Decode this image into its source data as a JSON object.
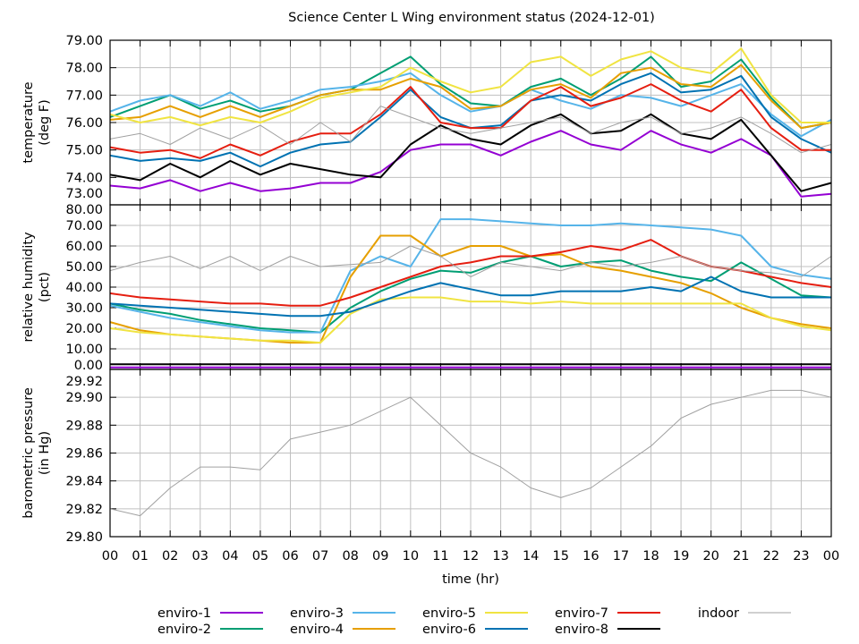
{
  "chart_data": {
    "type": "line",
    "title": "Science Center L Wing environment status (2024-12-01)",
    "xlabel": "time (hr)",
    "x_hours": [
      0,
      1,
      2,
      3,
      4,
      5,
      6,
      7,
      8,
      9,
      10,
      11,
      12,
      13,
      14,
      15,
      16,
      17,
      18,
      19,
      20,
      21,
      22,
      23,
      24
    ],
    "x_tick_labels": [
      "00",
      "01",
      "02",
      "03",
      "04",
      "05",
      "06",
      "07",
      "08",
      "09",
      "10",
      "11",
      "12",
      "13",
      "14",
      "15",
      "16",
      "17",
      "18",
      "19",
      "20",
      "21",
      "22",
      "23",
      "00"
    ],
    "grid": true,
    "legend_placement": "bottom",
    "series_styles": [
      {
        "name": "enviro-1",
        "color": "#9400d3"
      },
      {
        "name": "enviro-2",
        "color": "#009e73"
      },
      {
        "name": "enviro-3",
        "color": "#56b4e9"
      },
      {
        "name": "enviro-4",
        "color": "#e69f00"
      },
      {
        "name": "enviro-5",
        "color": "#f0e442"
      },
      {
        "name": "enviro-6",
        "color": "#0072b2"
      },
      {
        "name": "enviro-7",
        "color": "#e51e10"
      },
      {
        "name": "enviro-8",
        "color": "#000000"
      },
      {
        "name": "indoor",
        "color": "#a0a0a0"
      }
    ],
    "panels": [
      {
        "ylabel": [
          "temperature",
          "(deg F)"
        ],
        "ylim": [
          73,
          79
        ],
        "yticks": [
          "73.00",
          "74.00",
          "75.00",
          "76.00",
          "77.00",
          "78.00",
          "79.00"
        ],
        "series": [
          {
            "name": "enviro-1",
            "values": [
              73.7,
              73.6,
              73.9,
              73.5,
              73.8,
              73.5,
              73.6,
              73.8,
              73.8,
              74.2,
              75.0,
              75.2,
              75.2,
              74.8,
              75.3,
              75.7,
              75.2,
              75.0,
              75.7,
              75.2,
              74.9,
              75.4,
              74.8,
              73.3,
              73.4
            ]
          },
          {
            "name": "enviro-2",
            "values": [
              76.2,
              76.6,
              77.0,
              76.5,
              76.8,
              76.4,
              76.6,
              77.0,
              77.2,
              77.8,
              78.4,
              77.4,
              76.7,
              76.6,
              77.3,
              77.6,
              77.0,
              77.6,
              78.4,
              77.3,
              77.5,
              78.3,
              76.9,
              75.8,
              76.0
            ]
          },
          {
            "name": "enviro-3",
            "values": [
              76.4,
              76.8,
              77.0,
              76.6,
              77.1,
              76.5,
              76.8,
              77.2,
              77.3,
              77.5,
              77.8,
              77.0,
              76.4,
              76.6,
              77.2,
              76.8,
              76.5,
              77.0,
              76.9,
              76.6,
              77.0,
              77.4,
              76.3,
              75.5,
              76.1
            ]
          },
          {
            "name": "enviro-4",
            "values": [
              76.1,
              76.2,
              76.6,
              76.2,
              76.6,
              76.2,
              76.6,
              77.0,
              77.2,
              77.2,
              77.6,
              77.3,
              76.5,
              76.6,
              77.2,
              77.4,
              76.9,
              77.8,
              78.0,
              77.4,
              77.3,
              78.1,
              76.8,
              75.8,
              76.0
            ]
          },
          {
            "name": "enviro-5",
            "values": [
              76.3,
              76.0,
              76.2,
              75.9,
              76.2,
              76.0,
              76.4,
              76.9,
              77.1,
              77.3,
              78.0,
              77.5,
              77.1,
              77.3,
              78.2,
              78.4,
              77.7,
              78.3,
              78.6,
              78.0,
              77.8,
              78.7,
              77.0,
              76.0,
              76.0
            ]
          },
          {
            "name": "enviro-6",
            "values": [
              74.8,
              74.6,
              74.7,
              74.6,
              74.9,
              74.4,
              74.9,
              75.2,
              75.3,
              76.2,
              77.2,
              76.2,
              75.8,
              75.9,
              76.8,
              77.0,
              76.8,
              77.4,
              77.8,
              77.1,
              77.2,
              77.7,
              76.2,
              75.4,
              74.9
            ]
          },
          {
            "name": "enviro-7",
            "values": [
              75.1,
              74.9,
              75.0,
              74.7,
              75.2,
              74.8,
              75.3,
              75.6,
              75.6,
              76.3,
              77.3,
              76.0,
              75.8,
              75.8,
              76.8,
              77.3,
              76.6,
              76.9,
              77.4,
              76.8,
              76.4,
              77.2,
              75.8,
              75.0,
              75.0
            ]
          },
          {
            "name": "enviro-8",
            "values": [
              74.1,
              73.9,
              74.5,
              74.0,
              74.6,
              74.1,
              74.5,
              74.3,
              74.1,
              74.0,
              75.2,
              75.9,
              75.4,
              75.2,
              75.9,
              76.3,
              75.6,
              75.7,
              76.3,
              75.6,
              75.4,
              76.1,
              74.8,
              73.5,
              73.8
            ]
          },
          {
            "name": "indoor",
            "values": [
              75.4,
              75.6,
              75.2,
              75.8,
              75.4,
              75.9,
              75.2,
              76.0,
              75.3,
              76.6,
              76.2,
              75.8,
              75.6,
              75.8,
              76.0,
              76.2,
              75.6,
              76.0,
              76.2,
              75.6,
              75.8,
              76.2,
              75.6,
              74.9,
              75.2
            ]
          }
        ]
      },
      {
        "ylabel": [
          "relative humidity",
          "(pct)"
        ],
        "ylim": [
          0,
          80
        ],
        "yticks": [
          "0.00",
          "10.00",
          "20.00",
          "30.00",
          "40.00",
          "50.00",
          "60.00",
          "70.00",
          "80.00"
        ],
        "series": [
          {
            "name": "enviro-1",
            "values": [
              1,
              1,
              1,
              1,
              1,
              1,
              1,
              1,
              1,
              1,
              1,
              1,
              1,
              1,
              1,
              1,
              1,
              1,
              1,
              1,
              1,
              1,
              1,
              1,
              1
            ]
          },
          {
            "name": "enviro-2",
            "values": [
              32,
              29,
              27,
              24,
              22,
              20,
              19,
              18,
              30,
              38,
              44,
              48,
              47,
              52,
              55,
              50,
              52,
              53,
              48,
              45,
              43,
              52,
              44,
              36,
              35
            ]
          },
          {
            "name": "enviro-3",
            "values": [
              31,
              28,
              25,
              23,
              21,
              19,
              18,
              18,
              48,
              55,
              50,
              73,
              73,
              72,
              71,
              70,
              70,
              71,
              70,
              69,
              68,
              65,
              50,
              46,
              44
            ]
          },
          {
            "name": "enviro-4",
            "values": [
              23,
              19,
              17,
              16,
              15,
              14,
              13,
              13,
              45,
              65,
              65,
              55,
              60,
              60,
              55,
              56,
              50,
              48,
              45,
              42,
              37,
              30,
              25,
              22,
              20
            ]
          },
          {
            "name": "enviro-5",
            "values": [
              20,
              18,
              17,
              16,
              15,
              14,
              14,
              13,
              27,
              34,
              35,
              35,
              33,
              33,
              32,
              33,
              32,
              32,
              32,
              32,
              32,
              32,
              25,
              21,
              19
            ]
          },
          {
            "name": "enviro-6",
            "values": [
              32,
              31,
              30,
              29,
              28,
              27,
              26,
              26,
              28,
              33,
              38,
              42,
              39,
              36,
              36,
              38,
              38,
              38,
              40,
              38,
              45,
              38,
              35,
              35,
              35
            ]
          },
          {
            "name": "enviro-7",
            "values": [
              37,
              35,
              34,
              33,
              32,
              32,
              31,
              31,
              35,
              40,
              45,
              50,
              52,
              55,
              55,
              57,
              60,
              58,
              63,
              55,
              50,
              48,
              45,
              42,
              40
            ]
          },
          {
            "name": "enviro-8",
            "values": [
              2.5,
              2.5,
              2.5,
              2.5,
              2.5,
              2.5,
              2.5,
              2.5,
              2.5,
              2.5,
              2.5,
              2.5,
              2.5,
              2.5,
              2.5,
              2.5,
              2.5,
              2.5,
              2.5,
              2.5,
              2.5,
              2.5,
              2.5,
              2.5,
              2.5
            ]
          },
          {
            "name": "indoor",
            "values": [
              48,
              52,
              55,
              49,
              55,
              48,
              55,
              50,
              51,
              52,
              60,
              55,
              45,
              52,
              50,
              48,
              52,
              50,
              52,
              55,
              50,
              48,
              47,
              45,
              55
            ]
          }
        ]
      },
      {
        "ylabel": [
          "barometric pressure",
          "(in Hg)"
        ],
        "ylim": [
          29.8,
          29.92
        ],
        "yticks": [
          "29.80",
          "29.82",
          "29.84",
          "29.86",
          "29.88",
          "29.90",
          "29.92"
        ],
        "series": [
          {
            "name": "indoor",
            "values": [
              29.82,
              29.815,
              29.835,
              29.85,
              29.85,
              29.848,
              29.87,
              29.875,
              29.88,
              29.89,
              29.9,
              29.88,
              29.86,
              29.85,
              29.835,
              29.828,
              29.835,
              29.85,
              29.865,
              29.885,
              29.895,
              29.9,
              29.905,
              29.905,
              29.9
            ]
          }
        ]
      }
    ]
  }
}
